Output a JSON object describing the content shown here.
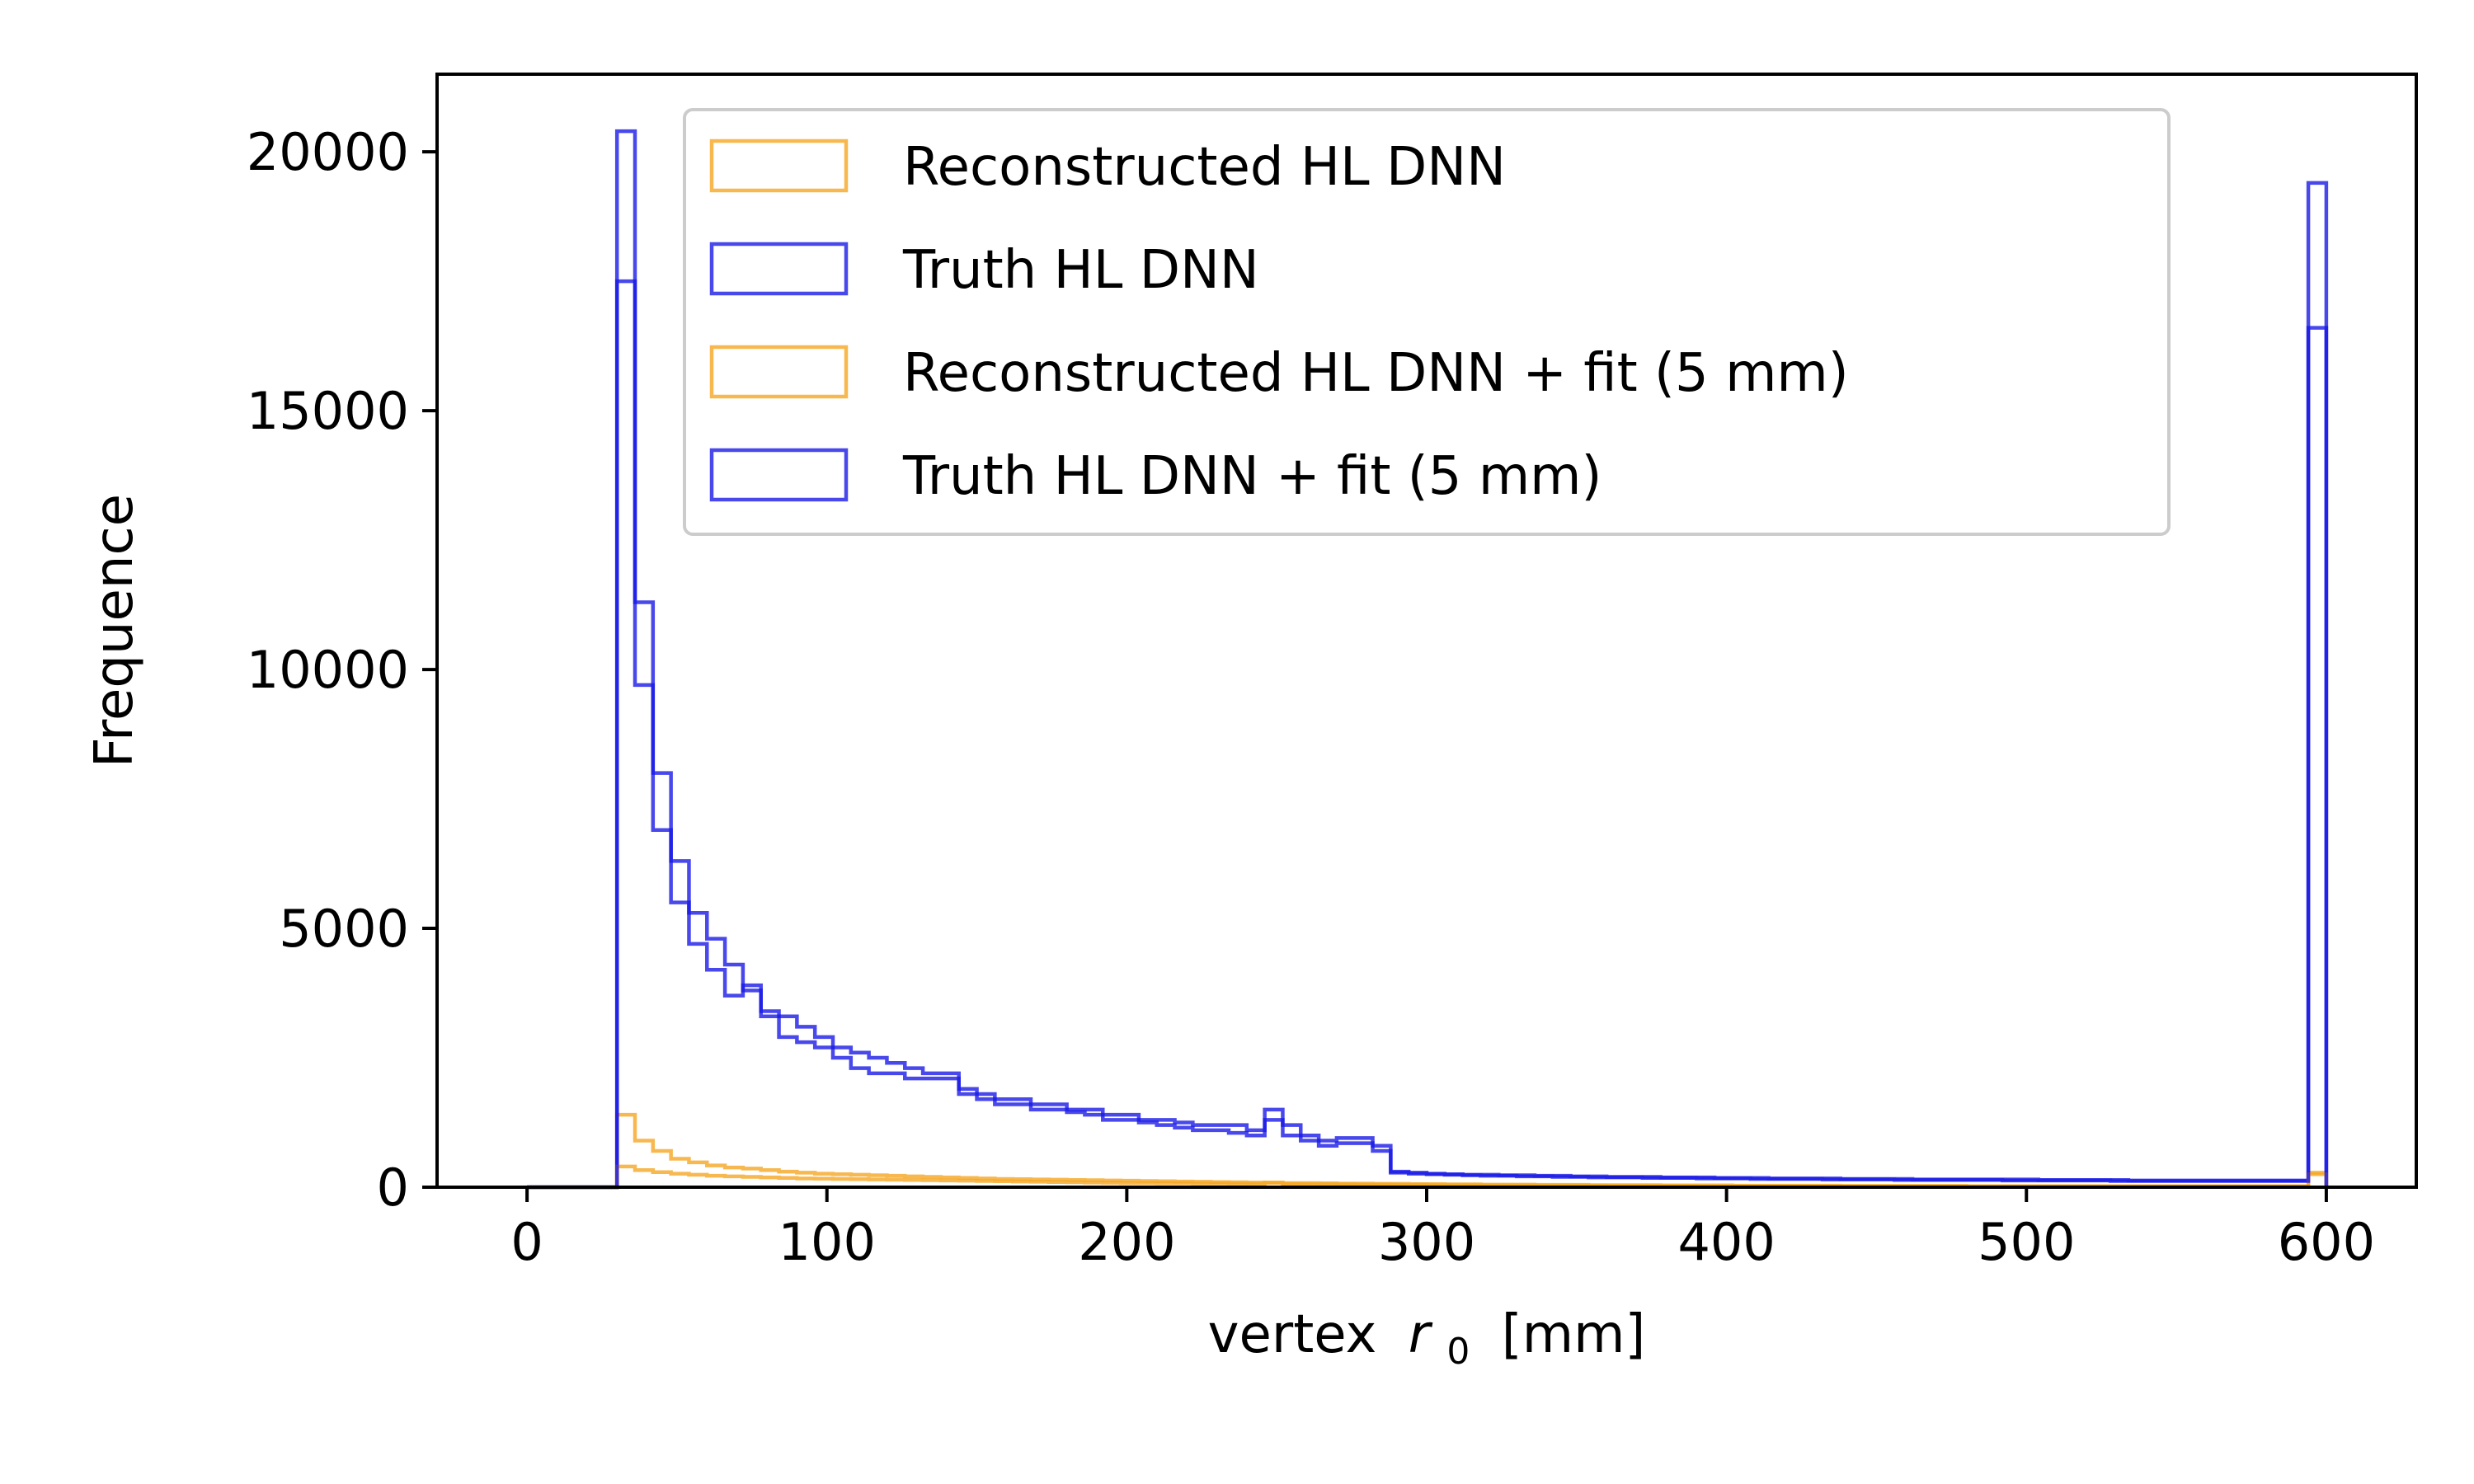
{
  "chart_data": {
    "type": "histogram",
    "xlabel": "vertex",
    "xlabel_symbol": "r",
    "xlabel_subscript": "0",
    "xlabel_unit": "[mm]",
    "ylabel": "Frequence",
    "xlim": [
      -30,
      630
    ],
    "ylim": [
      0,
      21500
    ],
    "x_ticks": [
      0,
      100,
      200,
      300,
      400,
      500,
      600
    ],
    "y_ticks": [
      0,
      5000,
      10000,
      15000,
      20000
    ],
    "grid": false,
    "legend_position": "top-center",
    "colors": {
      "orange": "#f5a623",
      "blue": "#1a1ae6"
    },
    "bin_width": 6,
    "bin_start": 30,
    "series": [
      {
        "name": "Reconstructed HL DNN",
        "color": "#f5a623",
        "values": [
          1400,
          900,
          700,
          550,
          480,
          420,
          380,
          360,
          330,
          300,
          280,
          260,
          250,
          240,
          230,
          220,
          210,
          200,
          190,
          180,
          170,
          160,
          155,
          150,
          145,
          140,
          135,
          130,
          125,
          120,
          115,
          110,
          105,
          100,
          95,
          90,
          85,
          80,
          80,
          75,
          70,
          70,
          65,
          65,
          60,
          60,
          55,
          55,
          50,
          50,
          50,
          45,
          45,
          45,
          40,
          40,
          40,
          40,
          35,
          35,
          35,
          35,
          30,
          30,
          30,
          30,
          30,
          30,
          25,
          25,
          25,
          25,
          25,
          25,
          25,
          20,
          20,
          20,
          20,
          20,
          20,
          20,
          20,
          20,
          20,
          20,
          20,
          20,
          20,
          20,
          20,
          20,
          20,
          20,
          280
        ]
      },
      {
        "name": "Truth HL DNN",
        "color": "#1a1ae6",
        "values": [
          20400,
          11300,
          8000,
          6300,
          5300,
          4800,
          4300,
          3800,
          3400,
          3300,
          3100,
          2900,
          2700,
          2600,
          2500,
          2400,
          2300,
          2200,
          2200,
          1900,
          1800,
          1700,
          1700,
          1600,
          1600,
          1500,
          1500,
          1400,
          1400,
          1300,
          1300,
          1250,
          1200,
          1200,
          1200,
          1100,
          1500,
          1200,
          1000,
          900,
          950,
          950,
          800,
          300,
          280,
          260,
          250,
          240,
          240,
          230,
          230,
          220,
          220,
          210,
          210,
          200,
          200,
          200,
          190,
          190,
          190,
          180,
          180,
          180,
          170,
          170,
          170,
          170,
          160,
          160,
          160,
          160,
          150,
          150,
          150,
          150,
          150,
          150,
          150,
          140,
          140,
          140,
          140,
          140,
          130,
          130,
          130,
          130,
          130,
          130,
          130,
          130,
          130,
          130,
          19400
        ]
      },
      {
        "name": "Reconstructed HL DNN + fit (5 mm)",
        "color": "#f5a623",
        "values": [
          400,
          330,
          290,
          260,
          240,
          220,
          210,
          200,
          190,
          180,
          170,
          165,
          160,
          155,
          150,
          145,
          140,
          135,
          130,
          125,
          120,
          115,
          110,
          105,
          100,
          95,
          90,
          85,
          80,
          80,
          75,
          75,
          70,
          70,
          65,
          65,
          90,
          60,
          55,
          55,
          55,
          50,
          50,
          45,
          45,
          40,
          40,
          40,
          35,
          35,
          35,
          30,
          30,
          30,
          30,
          25,
          25,
          25,
          25,
          25,
          20,
          20,
          20,
          20,
          20,
          20,
          20,
          20,
          20,
          20,
          20,
          20,
          20,
          20,
          20,
          20,
          20,
          20,
          20,
          20,
          20,
          20,
          20,
          20,
          20,
          20,
          20,
          20,
          20,
          20,
          20,
          20,
          20,
          20,
          250
        ]
      },
      {
        "name": "Truth HL DNN + fit (5 mm)",
        "color": "#1a1ae6",
        "values": [
          17500,
          9700,
          6900,
          5500,
          4700,
          4200,
          3700,
          3900,
          3300,
          2900,
          2800,
          2700,
          2500,
          2300,
          2200,
          2200,
          2100,
          2100,
          2100,
          1800,
          1700,
          1600,
          1600,
          1500,
          1500,
          1450,
          1400,
          1300,
          1300,
          1250,
          1200,
          1150,
          1100,
          1100,
          1050,
          1000,
          1300,
          1000,
          900,
          800,
          850,
          850,
          700,
          280,
          260,
          250,
          240,
          230,
          220,
          220,
          210,
          210,
          200,
          200,
          190,
          190,
          190,
          180,
          180,
          180,
          170,
          170,
          170,
          160,
          160,
          160,
          160,
          150,
          150,
          150,
          150,
          140,
          140,
          140,
          140,
          140,
          140,
          130,
          130,
          130,
          130,
          130,
          130,
          120,
          120,
          120,
          120,
          120,
          120,
          120,
          120,
          120,
          120,
          120,
          16600
        ]
      }
    ]
  }
}
